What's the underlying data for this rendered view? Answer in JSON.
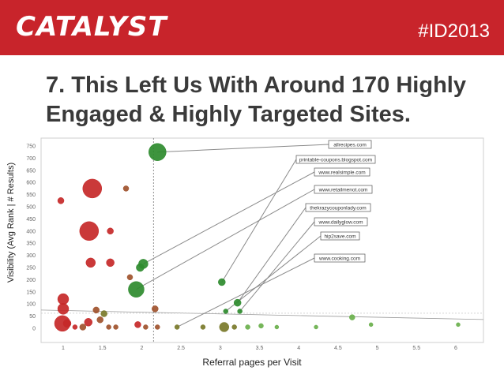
{
  "header": {
    "logo": "CATALYST",
    "tag": "#ID2013"
  },
  "slide": {
    "title": "7. This Left Us With Around 170 Highly Engaged & Highly Targeted Sites."
  },
  "colors": {
    "header_bg": "#c8242b",
    "red": "#c62828",
    "brown": "#a0522d",
    "olive": "#7a7a2a",
    "green": "#2e8b2e",
    "lightgreen": "#6ab04c"
  },
  "chart_data": {
    "type": "scatter",
    "xlabel": "Referral pages per Visit",
    "ylabel": "Visibility (Avg Rank | # Results)",
    "xlim": [
      0.65,
      6.3
    ],
    "ylim": [
      -15,
      770
    ],
    "x_ticks": [
      "1",
      "1.5",
      "2",
      "2.5",
      "3",
      "3.5",
      "4",
      "4.5",
      "5",
      "5.5",
      "6"
    ],
    "y_ticks": [
      "0",
      "50",
      "100",
      "150",
      "200",
      "250",
      "300",
      "350",
      "400",
      "450",
      "500",
      "550",
      "600",
      "650",
      "700",
      "750"
    ],
    "grid": false,
    "reference_lines": {
      "x": 2.15,
      "y": 75
    },
    "points": [
      {
        "x": 0.97,
        "y": 525,
        "r": 4,
        "color": "red"
      },
      {
        "x": 1.37,
        "y": 575,
        "r": 12,
        "color": "red"
      },
      {
        "x": 1.8,
        "y": 575,
        "r": 3.5,
        "color": "brown"
      },
      {
        "x": 1.33,
        "y": 400,
        "r": 12,
        "color": "red"
      },
      {
        "x": 1.6,
        "y": 400,
        "r": 4,
        "color": "red"
      },
      {
        "x": 1.35,
        "y": 270,
        "r": 6,
        "color": "red"
      },
      {
        "x": 1.6,
        "y": 270,
        "r": 5,
        "color": "red"
      },
      {
        "x": 1.85,
        "y": 210,
        "r": 3.5,
        "color": "brown"
      },
      {
        "x": 1.0,
        "y": 120,
        "r": 7,
        "color": "red"
      },
      {
        "x": 1.0,
        "y": 80,
        "r": 7,
        "color": "red"
      },
      {
        "x": 0.99,
        "y": 20,
        "r": 10,
        "color": "red"
      },
      {
        "x": 1.05,
        "y": 20,
        "r": 5,
        "color": "red"
      },
      {
        "x": 1.15,
        "y": 5,
        "r": 3,
        "color": "red"
      },
      {
        "x": 1.25,
        "y": 5,
        "r": 4,
        "color": "brown"
      },
      {
        "x": 1.32,
        "y": 25,
        "r": 5,
        "color": "red"
      },
      {
        "x": 1.42,
        "y": 75,
        "r": 4,
        "color": "brown"
      },
      {
        "x": 1.47,
        "y": 35,
        "r": 4,
        "color": "brown"
      },
      {
        "x": 1.52,
        "y": 60,
        "r": 4,
        "color": "olive"
      },
      {
        "x": 1.58,
        "y": 5,
        "r": 3,
        "color": "brown"
      },
      {
        "x": 1.67,
        "y": 5,
        "r": 3,
        "color": "brown"
      },
      {
        "x": 1.95,
        "y": 15,
        "r": 4,
        "color": "red"
      },
      {
        "x": 2.05,
        "y": 5,
        "r": 3,
        "color": "brown"
      },
      {
        "x": 2.17,
        "y": 80,
        "r": 4,
        "color": "brown"
      },
      {
        "x": 2.2,
        "y": 5,
        "r": 3,
        "color": "brown"
      },
      {
        "x": 1.98,
        "y": 250,
        "r": 5,
        "color": "green"
      },
      {
        "x": 1.93,
        "y": 160,
        "r": 10,
        "color": "green"
      },
      {
        "x": 2.02,
        "y": 265,
        "r": 6,
        "color": "green"
      },
      {
        "x": 2.2,
        "y": 725,
        "r": 11,
        "color": "green"
      },
      {
        "x": 3.02,
        "y": 190,
        "r": 4.5,
        "color": "green"
      },
      {
        "x": 3.22,
        "y": 105,
        "r": 4.5,
        "color": "green"
      },
      {
        "x": 3.25,
        "y": 70,
        "r": 3,
        "color": "green"
      },
      {
        "x": 3.07,
        "y": 70,
        "r": 3,
        "color": "green"
      },
      {
        "x": 2.45,
        "y": 5,
        "r": 3,
        "color": "olive"
      },
      {
        "x": 2.78,
        "y": 5,
        "r": 3,
        "color": "olive"
      },
      {
        "x": 3.05,
        "y": 5,
        "r": 6,
        "color": "olive"
      },
      {
        "x": 3.18,
        "y": 5,
        "r": 3,
        "color": "olive"
      },
      {
        "x": 3.35,
        "y": 5,
        "r": 3,
        "color": "lightgreen"
      },
      {
        "x": 3.52,
        "y": 10,
        "r": 3,
        "color": "lightgreen"
      },
      {
        "x": 3.72,
        "y": 5,
        "r": 2.5,
        "color": "lightgreen"
      },
      {
        "x": 4.22,
        "y": 5,
        "r": 2.5,
        "color": "lightgreen"
      },
      {
        "x": 4.68,
        "y": 45,
        "r": 3.5,
        "color": "lightgreen"
      },
      {
        "x": 4.92,
        "y": 15,
        "r": 2.5,
        "color": "lightgreen"
      },
      {
        "x": 6.03,
        "y": 15,
        "r": 2.5,
        "color": "lightgreen"
      }
    ],
    "annotations": [
      {
        "label": "allrecipes.com",
        "x": 2.2,
        "y": 725
      },
      {
        "label": "printable-coupons.blogspot.com",
        "x": 3.02,
        "y": 190
      },
      {
        "label": "www.realsimple.com",
        "x": 2.02,
        "y": 265
      },
      {
        "label": "www.retailmenot.com",
        "x": 1.93,
        "y": 160
      },
      {
        "label": "thekrazycouponlady.com",
        "x": 3.22,
        "y": 105
      },
      {
        "label": "www.dailyglow.com",
        "x": 3.25,
        "y": 70
      },
      {
        "label": "hip2save.com",
        "x": 3.07,
        "y": 70
      },
      {
        "label": "www.cooking.com",
        "x": 2.45,
        "y": 5
      }
    ]
  }
}
